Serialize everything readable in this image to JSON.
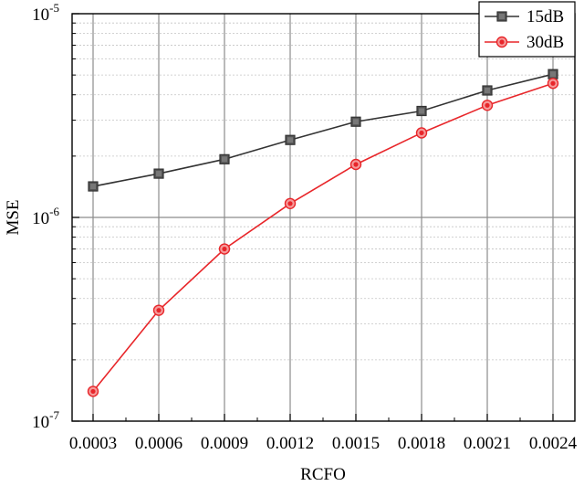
{
  "chart_data": {
    "type": "line",
    "title": "",
    "xlabel": "RCFO",
    "ylabel": "MSE",
    "yscale": "log",
    "ylim": [
      1e-07,
      1e-05
    ],
    "y_ticks": [
      {
        "base": "10",
        "exp": "-5",
        "value": 1e-05
      },
      {
        "base": "10",
        "exp": "-6",
        "value": 1e-06
      },
      {
        "base": "10",
        "exp": "-7",
        "value": 1e-07
      }
    ],
    "x": [
      "0.0003",
      "0.0006",
      "0.0009",
      "0.0012",
      "0.0015",
      "0.0018",
      "0.0021",
      "0.0024"
    ],
    "grid": true,
    "legend_position": "top-right",
    "series": [
      {
        "name": "15dB",
        "color": "#333333",
        "marker": "square",
        "values": [
          1.42e-06,
          1.64e-06,
          1.93e-06,
          2.4e-06,
          2.95e-06,
          3.33e-06,
          4.2e-06,
          5.05e-06
        ]
      },
      {
        "name": "30dB",
        "color": "#e8262a",
        "marker": "circle",
        "values": [
          1.4e-07,
          3.5e-07,
          7e-07,
          1.17e-06,
          1.82e-06,
          2.6e-06,
          3.55e-06,
          4.55e-06
        ]
      }
    ]
  }
}
